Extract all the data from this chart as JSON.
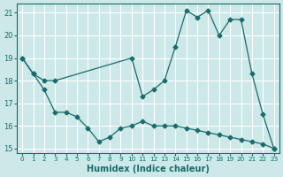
{
  "xlabel": "Humidex (Indice chaleur)",
  "bg_color": "#cce8e8",
  "line_color": "#1a6b6b",
  "grid_color": "#ffffff",
  "xlim": [
    -0.5,
    23.5
  ],
  "ylim": [
    14.8,
    21.4
  ],
  "yticks": [
    15,
    16,
    17,
    18,
    19,
    20,
    21
  ],
  "xticks": [
    0,
    1,
    2,
    3,
    4,
    5,
    6,
    7,
    8,
    9,
    10,
    11,
    12,
    13,
    14,
    15,
    16,
    17,
    18,
    19,
    20,
    21,
    22,
    23
  ],
  "line1_x": [
    0,
    1,
    2,
    3,
    4,
    5,
    6,
    7,
    8,
    9,
    10,
    11,
    12,
    13,
    14,
    15,
    16,
    17,
    18,
    19,
    20,
    21,
    22,
    23
  ],
  "line1_y": [
    19.0,
    18.3,
    17.6,
    16.6,
    16.6,
    16.4,
    15.9,
    15.3,
    15.5,
    15.9,
    16.0,
    16.2,
    16.0,
    16.0,
    16.0,
    15.9,
    15.8,
    15.7,
    15.6,
    15.5,
    15.4,
    15.3,
    15.2,
    15.0
  ],
  "line2_x": [
    0,
    1,
    2,
    3,
    10,
    11,
    12,
    13,
    14,
    15,
    16,
    17,
    18,
    19,
    20,
    21,
    22,
    23
  ],
  "line2_y": [
    19.0,
    18.3,
    18.0,
    18.0,
    19.0,
    17.3,
    17.6,
    18.0,
    19.5,
    21.1,
    20.8,
    21.1,
    20.0,
    20.7,
    20.7,
    18.3,
    16.5,
    15.0
  ],
  "marker": "D",
  "markersize": 2.5
}
